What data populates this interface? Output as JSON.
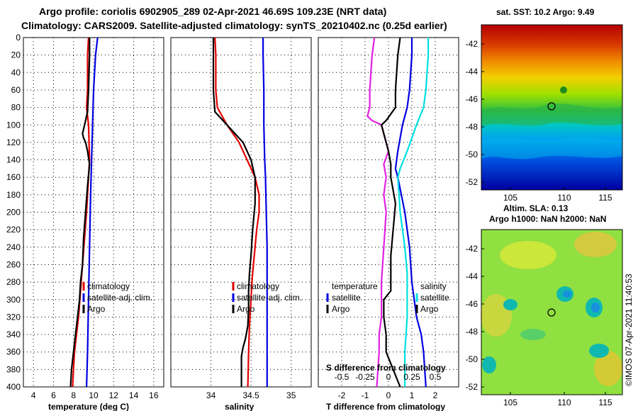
{
  "title_line1": "Argo profile: coriolis 6902905_289 02-Apr-2021 46.69S 109.23E (NRT data)",
  "title_line2": "Climatology: CARS2009. Satellite-adjusted climatology: synTS_20210402.nc (0.25d earlier)",
  "chart_data": [
    {
      "type": "line",
      "id": "temperature",
      "xlabel": "temperature (deg C)",
      "ylabel": "",
      "xlim": [
        3,
        17
      ],
      "ylim": [
        400,
        0
      ],
      "xticks": [
        "4",
        "6",
        "8",
        "10",
        "12",
        "14",
        "16"
      ],
      "yticks": [
        "0",
        "20",
        "40",
        "60",
        "80",
        "100",
        "120",
        "140",
        "160",
        "180",
        "200",
        "220",
        "240",
        "260",
        "280",
        "300",
        "320",
        "340",
        "360",
        "380",
        "400"
      ],
      "legend": [
        {
          "label": "climatology",
          "color": "#e00000"
        },
        {
          "label": "satellite-adj. clim.",
          "color": "#0000e0"
        },
        {
          "label": "Argo",
          "color": "#000000"
        }
      ],
      "series": [
        {
          "name": "climatology",
          "color": "#e00000",
          "x": [
            9.5,
            9.4,
            9.4,
            9.3,
            9.5,
            9.6,
            9.5,
            9.3,
            8.9,
            8.5,
            8.1,
            7.9
          ],
          "y": [
            0,
            20,
            60,
            80,
            100,
            140,
            160,
            200,
            260,
            320,
            360,
            400
          ]
        },
        {
          "name": "satellite-adj. clim.",
          "color": "#0000e0",
          "x": [
            10.4,
            10.2,
            10.0,
            9.9,
            9.8,
            9.7,
            9.6,
            9.5,
            9.4,
            9.3
          ],
          "y": [
            0,
            20,
            60,
            100,
            140,
            180,
            240,
            300,
            360,
            400
          ]
        },
        {
          "name": "Argo",
          "color": "#000000",
          "x": [
            9.6,
            9.6,
            9.5,
            9.4,
            9.1,
            8.9,
            9.0,
            9.2,
            9.4,
            9.6,
            9.4,
            9.2,
            9.0,
            8.9,
            8.7,
            8.6,
            8.4,
            8.2,
            8.0,
            7.8,
            7.7
          ],
          "y": [
            0,
            20,
            60,
            85,
            100,
            110,
            115,
            120,
            130,
            145,
            170,
            200,
            230,
            260,
            280,
            300,
            320,
            340,
            360,
            380,
            400
          ]
        }
      ]
    },
    {
      "type": "line",
      "id": "salinity",
      "xlabel": "salinity",
      "ylabel": "",
      "xlim": [
        33.5,
        35.25
      ],
      "ylim": [
        400,
        0
      ],
      "xticks": [
        "34",
        "34.5",
        "35"
      ],
      "legend": [
        {
          "label": "climatology",
          "color": "#e00000"
        },
        {
          "label": "satellite-adj. clim.",
          "color": "#0000e0"
        },
        {
          "label": "Argo",
          "color": "#000000"
        }
      ],
      "series": [
        {
          "name": "climatology",
          "color": "#e00000",
          "x": [
            34.05,
            34.06,
            34.06,
            34.08,
            34.2,
            34.35,
            34.45,
            34.55,
            34.6,
            34.6,
            34.57,
            34.55,
            34.53,
            34.51,
            34.5,
            34.48,
            34.47,
            34.46
          ],
          "y": [
            0,
            20,
            60,
            80,
            100,
            120,
            140,
            160,
            180,
            200,
            220,
            240,
            260,
            280,
            300,
            330,
            360,
            400
          ]
        },
        {
          "name": "satellite-adj. clim.",
          "color": "#0000e0",
          "x": [
            34.65,
            34.65,
            34.66,
            34.66,
            34.67,
            34.68,
            34.69,
            34.7,
            34.7,
            34.7,
            34.7,
            34.7
          ],
          "y": [
            0,
            20,
            60,
            100,
            140,
            160,
            200,
            240,
            280,
            320,
            360,
            400
          ]
        },
        {
          "name": "Argo",
          "color": "#000000",
          "x": [
            34.03,
            34.03,
            34.03,
            34.05,
            34.2,
            34.3,
            34.4,
            34.5,
            34.55,
            34.55,
            34.52,
            34.5,
            34.48,
            34.47,
            34.47,
            34.46,
            34.43,
            34.4,
            34.38,
            34.38,
            34.38
          ],
          "y": [
            0,
            20,
            60,
            85,
            100,
            110,
            120,
            140,
            160,
            190,
            220,
            250,
            270,
            290,
            310,
            330,
            345,
            355,
            365,
            380,
            400
          ]
        }
      ]
    },
    {
      "type": "line",
      "id": "difference",
      "xlabel": "T difference from climatology",
      "xlabel_top": "S difference from climatology",
      "ylabel": "",
      "xlim": [
        -3,
        3
      ],
      "ylim": [
        400,
        0
      ],
      "xticks": [
        "-2",
        "-1",
        "0",
        "1",
        "2"
      ],
      "xticks_top": [
        "-0.5",
        "-0.25",
        "0",
        "0.25",
        "0.5"
      ],
      "legend_left_header": "temperature",
      "legend_right_header": "salinity",
      "legend_left": [
        {
          "label": "satellite",
          "color": "#0000e0"
        },
        {
          "label": "Argo",
          "color": "#000000"
        }
      ],
      "legend_right": [
        {
          "label": "satellite",
          "color": "#00e0e0"
        },
        {
          "label": "Argo",
          "color": "#000000"
        }
      ],
      "series": [
        {
          "name": "T sat",
          "color": "#e020e0",
          "x": [
            -0.6,
            -0.7,
            -0.8,
            -0.8,
            -0.9,
            -0.7,
            -0.3,
            0.0,
            -0.2,
            -0.1,
            -0.2,
            -0.1,
            -0.2,
            -0.3,
            -0.3,
            -0.3,
            -0.4,
            -0.4,
            -0.5
          ],
          "y": [
            0,
            20,
            60,
            80,
            90,
            95,
            100,
            130,
            145,
            160,
            180,
            200,
            240,
            280,
            300,
            320,
            340,
            360,
            400
          ]
        },
        {
          "name": "T Argo",
          "color": "#000000",
          "x": [
            0.5,
            0.4,
            0.3,
            0.3,
            -0.1,
            -0.3,
            0.0,
            0.1,
            0.1,
            0.3,
            0.2,
            0.1,
            0.1,
            0.1,
            -0.2,
            -0.2,
            -0.1,
            -0.1,
            0.5
          ],
          "y": [
            0,
            20,
            60,
            80,
            95,
            100,
            130,
            145,
            160,
            190,
            220,
            250,
            270,
            290,
            300,
            320,
            340,
            360,
            400
          ]
        },
        {
          "name": "S sat",
          "color": "#0000e0",
          "x": [
            1.0,
            1.0,
            0.9,
            0.8,
            0.6,
            0.4,
            0.3,
            0.4,
            0.7,
            0.9,
            1.0,
            1.2,
            1.4,
            1.5,
            1.6
          ],
          "y": [
            0,
            20,
            60,
            80,
            100,
            130,
            150,
            160,
            200,
            240,
            280,
            320,
            340,
            360,
            400
          ]
        },
        {
          "name": "S Argo",
          "color": "#00e0e0",
          "x": [
            1.7,
            1.7,
            1.6,
            1.5,
            1.2,
            0.8,
            0.5,
            0.4,
            0.5,
            0.7,
            0.8,
            0.8,
            0.8,
            0.7,
            0.7
          ],
          "y": [
            0,
            20,
            60,
            80,
            100,
            130,
            150,
            160,
            200,
            240,
            270,
            300,
            320,
            360,
            400
          ]
        }
      ]
    }
  ],
  "sst_map": {
    "title": "sat. SST: 10.2 Argo: 9.49",
    "xticks": [
      "105",
      "110",
      "115"
    ],
    "yticks": [
      "-42",
      "-44",
      "-46",
      "-48",
      "-50",
      "-52"
    ]
  },
  "sla_map": {
    "title_line1": "Altim. SLA: 0.13",
    "title_line2": "Argo h1000: NaN h2000: NaN",
    "xticks": [
      "105",
      "110",
      "115"
    ],
    "yticks": [
      "-42",
      "-44",
      "-46",
      "-48",
      "-50",
      "-52"
    ]
  },
  "credit": "©IMOS 07-Apr-2021 11:40:53"
}
